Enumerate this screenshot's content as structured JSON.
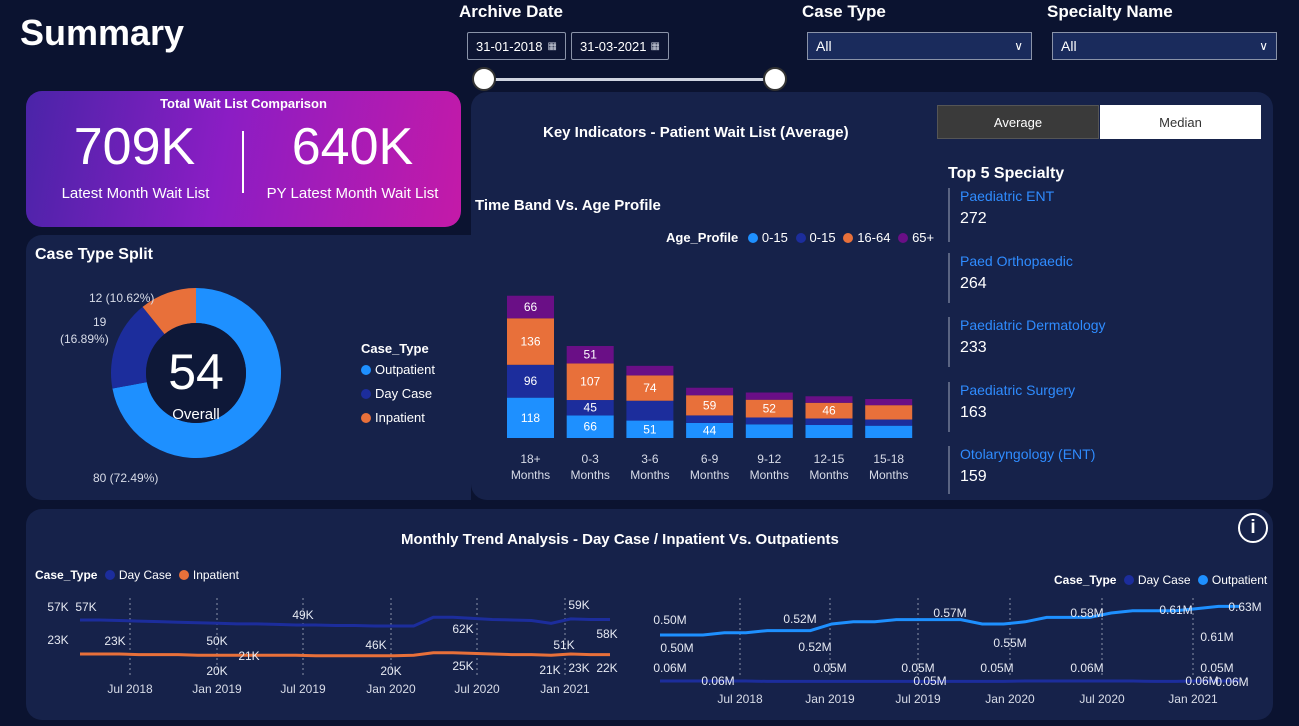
{
  "header": {
    "title": "Summary"
  },
  "filters": {
    "archive_label": "Archive Date",
    "date_from": "31-01-2018",
    "date_to": "31-03-2021",
    "case_type_label": "Case Type",
    "case_type_value": "All",
    "specialty_label": "Specialty Name",
    "specialty_value": "All"
  },
  "waitlist": {
    "title": "Total Wait List Comparison",
    "latest_value": "709K",
    "latest_label": "Latest Month Wait List",
    "py_value": "640K",
    "py_label": "PY Latest Month Wait List"
  },
  "key_indicators": {
    "title": "Key Indicators - Patient Wait List (Average)",
    "toggle_average": "Average",
    "toggle_median": "Median"
  },
  "case_split": {
    "title": "Case Type Split",
    "center_value": "54",
    "center_label": "Overall",
    "legend_title": "Case_Type",
    "slices": [
      {
        "name": "Outpatient",
        "value": 80,
        "label": "80 (72.49%)",
        "color": "#1e90ff"
      },
      {
        "name": "Day Case",
        "value": 19,
        "label": "19 (16.89%)",
        "color": "#1c2d9c"
      },
      {
        "name": "Inpatient",
        "value": 12,
        "label": "12 (10.62%)",
        "color": "#e8703a"
      }
    ],
    "label_19_line1": "19",
    "label_19_line2": "(16.89%)"
  },
  "timeband": {
    "title": "Time Band Vs. Age Profile",
    "legend_title": "Age_Profile",
    "legend": [
      {
        "name": "0-15",
        "color": "#1e90ff"
      },
      {
        "name": "0-15",
        "color": "#1c2d9c"
      },
      {
        "name": "16-64",
        "color": "#e8703a"
      },
      {
        "name": "65+",
        "color": "#6a0f86"
      }
    ]
  },
  "top_specialty": {
    "title": "Top 5 Specialty",
    "items": [
      {
        "name": "Paediatric ENT",
        "value": "272"
      },
      {
        "name": "Paed Orthopaedic",
        "value": "264"
      },
      {
        "name": "Paediatric Dermatology",
        "value": "233"
      },
      {
        "name": "Paediatric Surgery",
        "value": "163"
      },
      {
        "name": "Otolaryngology (ENT)",
        "value": "159"
      }
    ]
  },
  "trend": {
    "title": "Monthly Trend Analysis - Day Case / Inpatient Vs. Outpatients",
    "left_legend_title": "Case_Type",
    "left_legend": [
      {
        "name": "Day Case",
        "color": "#1c2d9c"
      },
      {
        "name": "Inpatient",
        "color": "#e8703a"
      }
    ],
    "right_legend_title": "Case_Type",
    "right_legend": [
      {
        "name": "Day Case",
        "color": "#1c2d9c"
      },
      {
        "name": "Outpatient",
        "color": "#1e90ff"
      }
    ],
    "info": "i"
  },
  "chart_data": [
    {
      "type": "pie",
      "title": "Case Type Split",
      "categories": [
        "Outpatient",
        "Day Case",
        "Inpatient"
      ],
      "values": [
        80,
        19,
        12
      ],
      "labels": [
        "80 (72.49%)",
        "19 (16.89%)",
        "12 (10.62%)"
      ],
      "legend": "left"
    },
    {
      "type": "bar",
      "stacked": true,
      "title": "Time Band Vs. Age Profile",
      "categories": [
        "18+ Months",
        "0-3 Months",
        "3-6 Months",
        "6-9 Months",
        "9-12 Months",
        "12-15 Months",
        "15-18 Months"
      ],
      "series": [
        {
          "name": "0-15",
          "color": "#1e90ff",
          "values": [
            118,
            66,
            51,
            44,
            40,
            38,
            36
          ]
        },
        {
          "name": "0-15",
          "color": "#1c2d9c",
          "values": [
            96,
            45,
            58,
            22,
            20,
            19,
            18
          ]
        },
        {
          "name": "16-64",
          "color": "#e8703a",
          "values": [
            136,
            107,
            74,
            59,
            52,
            46,
            42
          ]
        },
        {
          "name": "65+",
          "color": "#6a0f86",
          "values": [
            66,
            51,
            28,
            22,
            21,
            19,
            18
          ]
        }
      ],
      "data_labels": [
        [
          "118",
          "66",
          "51",
          "44",
          "",
          "",
          ""
        ],
        [
          "96",
          "45",
          "",
          "",
          "",
          "",
          ""
        ],
        [
          "136",
          "107",
          "74",
          "59",
          "52",
          "46",
          ""
        ],
        [
          "66",
          "51",
          "",
          "",
          "",
          "",
          ""
        ]
      ],
      "legend": "top-right",
      "grid": false
    },
    {
      "type": "line",
      "title": "Monthly Trend Analysis - Day Case / Inpatient",
      "x_ticks": [
        "Jul 2018",
        "Jan 2019",
        "Jul 2019",
        "Jan 2020",
        "Jul 2020",
        "Jan 2021"
      ],
      "series": [
        {
          "name": "Day Case",
          "color": "#1c2d9c",
          "values": [
            57,
            57,
            56,
            55,
            54,
            53,
            52,
            51,
            50,
            50,
            49,
            48,
            48,
            47,
            47,
            46,
            46,
            46,
            62,
            62,
            60,
            58,
            57,
            56,
            51,
            59,
            58,
            58
          ]
        },
        {
          "name": "Inpatient",
          "color": "#e8703a",
          "values": [
            23,
            23,
            23,
            22,
            22,
            22,
            21,
            21,
            21,
            21,
            21,
            21,
            20,
            20,
            20,
            20,
            20,
            21,
            25,
            25,
            24,
            23,
            22,
            22,
            21,
            23,
            22,
            22
          ]
        }
      ],
      "point_labels": [
        {
          "text": "57K",
          "series": "Day Case"
        },
        {
          "text": "57K",
          "series": "Day Case"
        },
        {
          "text": "50K",
          "series": "Day Case"
        },
        {
          "text": "49K",
          "series": "Day Case"
        },
        {
          "text": "46K",
          "series": "Day Case"
        },
        {
          "text": "62K",
          "series": "Day Case"
        },
        {
          "text": "51K",
          "series": "Day Case"
        },
        {
          "text": "59K",
          "series": "Day Case"
        },
        {
          "text": "58K",
          "series": "Day Case"
        },
        {
          "text": "23K",
          "series": "Inpatient"
        },
        {
          "text": "23K",
          "series": "Inpatient"
        },
        {
          "text": "20K",
          "series": "Inpatient"
        },
        {
          "text": "21K",
          "series": "Inpatient"
        },
        {
          "text": "20K",
          "series": "Inpatient"
        },
        {
          "text": "25K",
          "series": "Inpatient"
        },
        {
          "text": "21K",
          "series": "Inpatient"
        },
        {
          "text": "23K",
          "series": "Inpatient"
        },
        {
          "text": "22K",
          "series": "Inpatient"
        }
      ],
      "legend": "top-left"
    },
    {
      "type": "line",
      "title": "Monthly Trend Analysis - Outpatients",
      "x_ticks": [
        "Jul 2018",
        "Jan 2019",
        "Jul 2019",
        "Jan 2020",
        "Jul 2020",
        "Jan 2021"
      ],
      "series": [
        {
          "name": "Outpatient",
          "color": "#1e90ff",
          "values": [
            0.5,
            0.5,
            0.5,
            0.51,
            0.51,
            0.52,
            0.52,
            0.52,
            0.55,
            0.56,
            0.56,
            0.57,
            0.57,
            0.57,
            0.57,
            0.55,
            0.55,
            0.56,
            0.58,
            0.58,
            0.58,
            0.6,
            0.61,
            0.61,
            0.61,
            0.62,
            0.63,
            0.63
          ]
        },
        {
          "name": "Day Case",
          "color": "#1c2d9c",
          "values": [
            0.06,
            0.06,
            0.06,
            0.06,
            0.06,
            0.05,
            0.05,
            0.05,
            0.05,
            0.05,
            0.05,
            0.05,
            0.05,
            0.05,
            0.05,
            0.05,
            0.05,
            0.06,
            0.06,
            0.06,
            0.06,
            0.06,
            0.06,
            0.05,
            0.05,
            0.06,
            0.06,
            0.06
          ]
        }
      ],
      "point_labels": [
        "0.50M",
        "0.50M",
        "0.52M",
        "0.52M",
        "0.57M",
        "0.55M",
        "0.58M",
        "0.61M",
        "0.61M",
        "0.63M",
        "0.06M",
        "0.06M",
        "0.05M",
        "0.05M",
        "0.05M",
        "0.05M",
        "0.06M",
        "0.05M",
        "0.06M",
        "0.06M"
      ],
      "legend": "top-right"
    }
  ]
}
